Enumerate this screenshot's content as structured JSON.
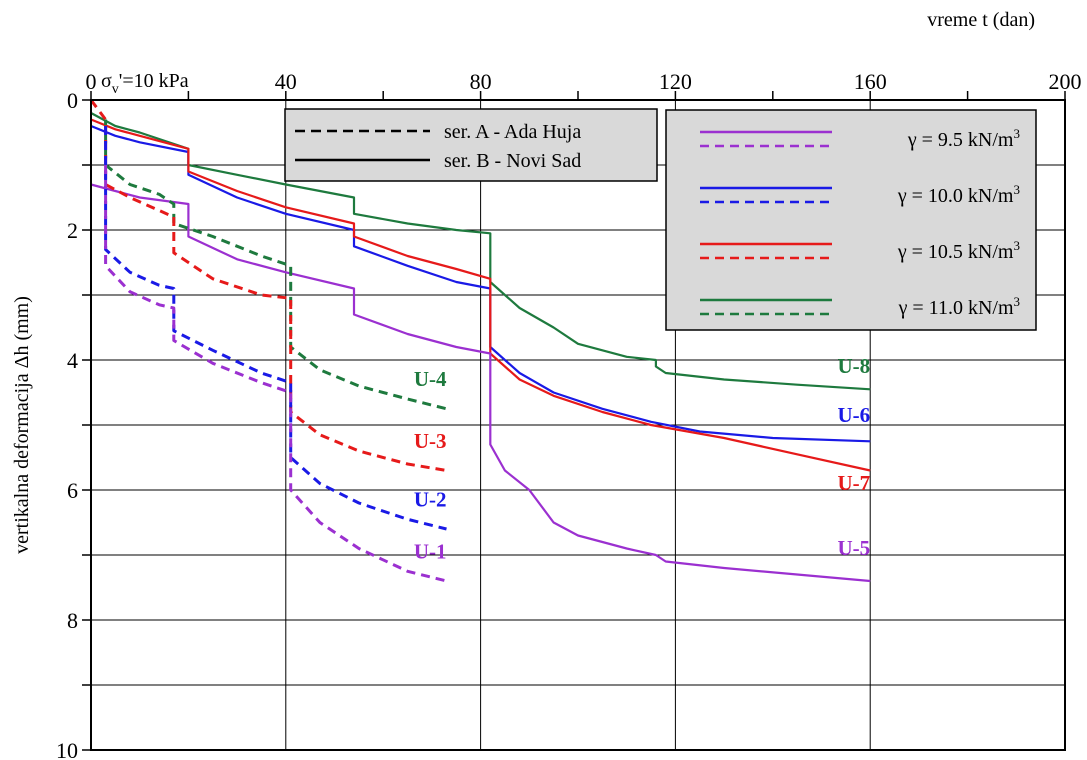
{
  "chart_data": {
    "type": "line",
    "xlabel": "vreme t (dan)",
    "ylabel": "vertikalna deformacija Δh  (mm)",
    "xlim": [
      0,
      200
    ],
    "ylim": [
      0,
      10
    ],
    "y_inverted": true,
    "x_axis_position": "top",
    "xticks": [
      "0",
      "40",
      "80",
      "120",
      "160",
      "200"
    ],
    "yticks": [
      "0",
      "2",
      "4",
      "6",
      "8",
      "10"
    ],
    "grid": true,
    "annotation": {
      "prefix": "σ",
      "subscript": "v",
      "suffix": "'=10 kPa"
    },
    "legend_lines": {
      "position": "top-center",
      "entries": [
        {
          "label": "ser. A - Ada Huja",
          "style": "dashed"
        },
        {
          "label": "ser. B - Novi Sad",
          "style": "solid"
        }
      ]
    },
    "legend_gamma": {
      "position": "top-right",
      "entries": [
        {
          "label": "γ = 9.5 kN/m",
          "sup": "3",
          "color": "#9b30d0"
        },
        {
          "label": "γ = 10.0 kN/m",
          "sup": "3",
          "color": "#1a1ae6"
        },
        {
          "label": "γ = 10.5 kN/m",
          "sup": "3",
          "color": "#e61a1a"
        },
        {
          "label": "γ = 11.0 kN/m",
          "sup": "3",
          "color": "#1e7a3e"
        }
      ]
    },
    "series": [
      {
        "name": "U-8",
        "style": "solid",
        "color": "#1e7a3e",
        "label_at": [
          160,
          4.2
        ],
        "points": [
          [
            0,
            0.2
          ],
          [
            5,
            0.4
          ],
          [
            10,
            0.5
          ],
          [
            20,
            0.75
          ],
          [
            20,
            1.0
          ],
          [
            30,
            1.15
          ],
          [
            40,
            1.3
          ],
          [
            54,
            1.5
          ],
          [
            54,
            1.75
          ],
          [
            65,
            1.9
          ],
          [
            75,
            2.0
          ],
          [
            82,
            2.05
          ],
          [
            82,
            2.8
          ],
          [
            88,
            3.2
          ],
          [
            95,
            3.5
          ],
          [
            100,
            3.75
          ],
          [
            110,
            3.95
          ],
          [
            116,
            4.0
          ],
          [
            116,
            4.1
          ],
          [
            118,
            4.2
          ],
          [
            130,
            4.3
          ],
          [
            145,
            4.38
          ],
          [
            160,
            4.45
          ]
        ]
      },
      {
        "name": "U-6",
        "style": "solid",
        "color": "#1a1ae6",
        "label_at": [
          160,
          4.95
        ],
        "points": [
          [
            0,
            0.4
          ],
          [
            5,
            0.55
          ],
          [
            10,
            0.65
          ],
          [
            20,
            0.8
          ],
          [
            20,
            1.15
          ],
          [
            30,
            1.5
          ],
          [
            40,
            1.75
          ],
          [
            54,
            2.0
          ],
          [
            54,
            2.25
          ],
          [
            65,
            2.55
          ],
          [
            75,
            2.8
          ],
          [
            82,
            2.9
          ],
          [
            82,
            3.8
          ],
          [
            88,
            4.2
          ],
          [
            95,
            4.5
          ],
          [
            105,
            4.75
          ],
          [
            115,
            4.95
          ],
          [
            125,
            5.1
          ],
          [
            140,
            5.2
          ],
          [
            160,
            5.25
          ]
        ]
      },
      {
        "name": "U-7",
        "style": "solid",
        "color": "#e61a1a",
        "label_at": [
          160,
          6.0
        ],
        "points": [
          [
            0,
            0.3
          ],
          [
            5,
            0.45
          ],
          [
            10,
            0.55
          ],
          [
            20,
            0.75
          ],
          [
            20,
            1.1
          ],
          [
            30,
            1.4
          ],
          [
            40,
            1.65
          ],
          [
            54,
            1.9
          ],
          [
            54,
            2.1
          ],
          [
            65,
            2.4
          ],
          [
            75,
            2.6
          ],
          [
            82,
            2.75
          ],
          [
            82,
            3.9
          ],
          [
            88,
            4.3
          ],
          [
            95,
            4.55
          ],
          [
            105,
            4.8
          ],
          [
            115,
            5.0
          ],
          [
            130,
            5.2
          ],
          [
            145,
            5.45
          ],
          [
            160,
            5.7
          ]
        ]
      },
      {
        "name": "U-5",
        "style": "solid",
        "color": "#9b30d0",
        "label_at": [
          160,
          7.0
        ],
        "points": [
          [
            0,
            1.3
          ],
          [
            5,
            1.4
          ],
          [
            10,
            1.5
          ],
          [
            20,
            1.6
          ],
          [
            20,
            2.1
          ],
          [
            30,
            2.45
          ],
          [
            40,
            2.65
          ],
          [
            54,
            2.9
          ],
          [
            54,
            3.3
          ],
          [
            65,
            3.6
          ],
          [
            75,
            3.8
          ],
          [
            82,
            3.9
          ],
          [
            82,
            5.3
          ],
          [
            85,
            5.7
          ],
          [
            90,
            6.0
          ],
          [
            95,
            6.5
          ],
          [
            100,
            6.7
          ],
          [
            105,
            6.8
          ],
          [
            110,
            6.9
          ],
          [
            116,
            7.0
          ],
          [
            118,
            7.1
          ],
          [
            130,
            7.2
          ],
          [
            145,
            7.3
          ],
          [
            160,
            7.4
          ]
        ]
      },
      {
        "name": "U-4",
        "style": "dashed",
        "color": "#1e7a3e",
        "label_at": [
          73,
          4.4
        ],
        "points": [
          [
            3,
            0.3
          ],
          [
            3,
            1.0
          ],
          [
            8,
            1.3
          ],
          [
            14,
            1.45
          ],
          [
            17,
            1.6
          ],
          [
            17,
            1.9
          ],
          [
            25,
            2.1
          ],
          [
            35,
            2.4
          ],
          [
            41,
            2.55
          ],
          [
            41,
            3.8
          ],
          [
            47,
            4.15
          ],
          [
            55,
            4.4
          ],
          [
            65,
            4.6
          ],
          [
            73,
            4.75
          ]
        ]
      },
      {
        "name": "U-3",
        "style": "dashed",
        "color": "#e61a1a",
        "label_at": [
          73,
          5.35
        ],
        "points": [
          [
            0,
            0.0
          ],
          [
            3,
            0.3
          ],
          [
            3,
            1.3
          ],
          [
            8,
            1.5
          ],
          [
            14,
            1.7
          ],
          [
            17,
            1.8
          ],
          [
            17,
            2.35
          ],
          [
            25,
            2.75
          ],
          [
            35,
            3.0
          ],
          [
            41,
            3.05
          ],
          [
            41,
            4.8
          ],
          [
            47,
            5.15
          ],
          [
            55,
            5.4
          ],
          [
            65,
            5.6
          ],
          [
            73,
            5.7
          ]
        ]
      },
      {
        "name": "U-2",
        "style": "dashed",
        "color": "#1a1ae6",
        "label_at": [
          73,
          6.25
        ],
        "points": [
          [
            3,
            0.4
          ],
          [
            3,
            2.3
          ],
          [
            8,
            2.65
          ],
          [
            14,
            2.85
          ],
          [
            17,
            2.9
          ],
          [
            17,
            3.55
          ],
          [
            25,
            3.85
          ],
          [
            35,
            4.2
          ],
          [
            41,
            4.35
          ],
          [
            41,
            5.5
          ],
          [
            47,
            5.9
          ],
          [
            55,
            6.2
          ],
          [
            65,
            6.45
          ],
          [
            73,
            6.6
          ]
        ]
      },
      {
        "name": "U-1",
        "style": "dashed",
        "color": "#9b30d0",
        "label_at": [
          73,
          7.05
        ],
        "points": [
          [
            3,
            1.0
          ],
          [
            3,
            2.55
          ],
          [
            8,
            2.95
          ],
          [
            14,
            3.15
          ],
          [
            17,
            3.2
          ],
          [
            17,
            3.7
          ],
          [
            25,
            4.05
          ],
          [
            35,
            4.35
          ],
          [
            41,
            4.5
          ],
          [
            41,
            6.0
          ],
          [
            47,
            6.5
          ],
          [
            55,
            6.9
          ],
          [
            65,
            7.25
          ],
          [
            73,
            7.4
          ]
        ]
      }
    ]
  }
}
